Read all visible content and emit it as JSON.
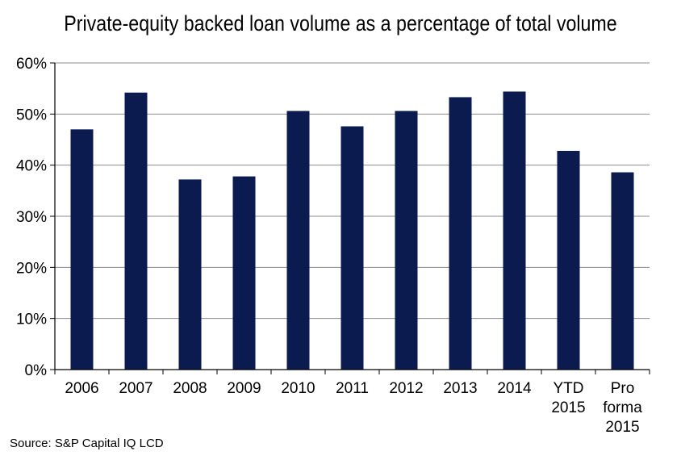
{
  "chart_data": {
    "type": "bar",
    "title": "Private-equity backed loan volume as a percentage of total volume",
    "xlabel": "",
    "ylabel": "",
    "categories": [
      "2006",
      "2007",
      "2008",
      "2009",
      "2010",
      "2011",
      "2012",
      "2013",
      "2014",
      "YTD 2015",
      "Pro forma 2015"
    ],
    "category_lines": [
      [
        "2006"
      ],
      [
        "2007"
      ],
      [
        "2008"
      ],
      [
        "2009"
      ],
      [
        "2010"
      ],
      [
        "2011"
      ],
      [
        "2012"
      ],
      [
        "2013"
      ],
      [
        "2014"
      ],
      [
        "YTD",
        "2015"
      ],
      [
        "Pro",
        "forma",
        "2015"
      ]
    ],
    "values": [
      47,
      54.2,
      37.2,
      37.8,
      50.6,
      47.6,
      50.6,
      53.3,
      54.4,
      42.8,
      38.6
    ],
    "ylim": [
      0,
      60
    ],
    "yticks": [
      0,
      10,
      20,
      30,
      40,
      50,
      60
    ],
    "ytick_labels": [
      "0%",
      "10%",
      "20%",
      "30%",
      "40%",
      "50%",
      "60%"
    ],
    "grid": true,
    "legend": "none",
    "bar_color": "#0b1a4f",
    "source": "Source: S&P Capital IQ LCD"
  }
}
